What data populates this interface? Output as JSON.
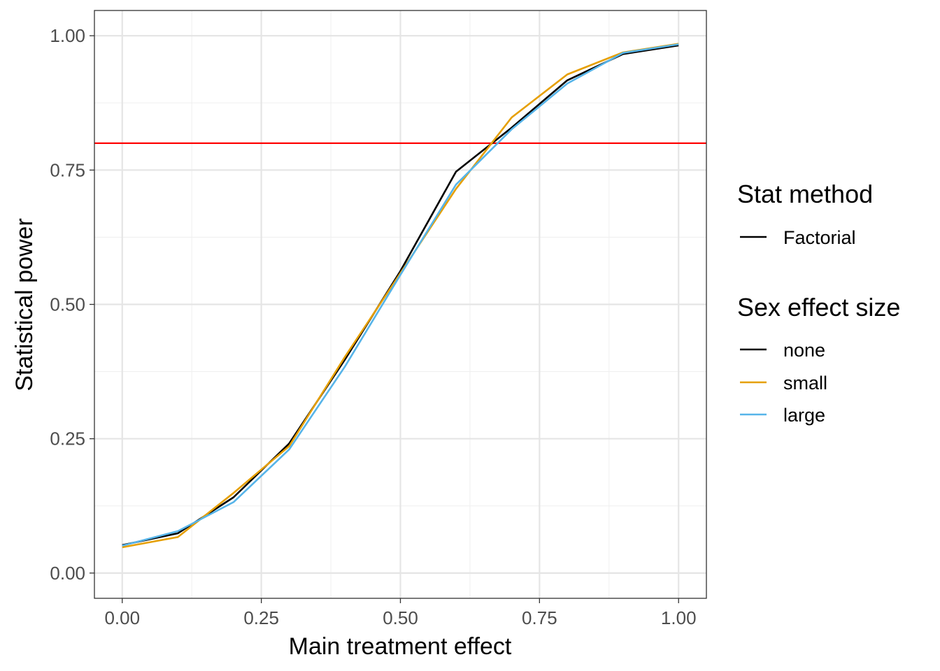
{
  "chart_data": {
    "type": "line",
    "title": "",
    "xlabel": "Main treatment effect",
    "ylabel": "Statistical power",
    "xlim": [
      -0.05,
      1.05
    ],
    "ylim": [
      -0.047,
      1.047
    ],
    "grid": true,
    "x_ticks": [
      0.0,
      0.25,
      0.5,
      0.75,
      1.0
    ],
    "x_tick_labels": [
      "0.00",
      "0.25",
      "0.50",
      "0.75",
      "1.00"
    ],
    "y_ticks": [
      0.0,
      0.25,
      0.5,
      0.75,
      1.0
    ],
    "y_tick_labels": [
      "0.00",
      "0.25",
      "0.50",
      "0.75",
      "1.00"
    ],
    "x": [
      0.0,
      0.1,
      0.2,
      0.3,
      0.4,
      0.5,
      0.6,
      0.7,
      0.8,
      0.9,
      1.0
    ],
    "series": [
      {
        "name": "none",
        "color": "#000000",
        "values": [
          0.052,
          0.074,
          0.141,
          0.241,
          0.397,
          0.562,
          0.747,
          0.829,
          0.917,
          0.966,
          0.982
        ]
      },
      {
        "name": "small",
        "color": "#E69F00",
        "values": [
          0.048,
          0.067,
          0.149,
          0.236,
          0.402,
          0.558,
          0.715,
          0.848,
          0.928,
          0.969,
          0.985
        ]
      },
      {
        "name": "large",
        "color": "#56B4E9",
        "values": [
          0.051,
          0.078,
          0.132,
          0.23,
          0.384,
          0.555,
          0.723,
          0.826,
          0.911,
          0.968,
          0.984
        ]
      }
    ],
    "reference_line": {
      "y": 0.8,
      "color": "#FF0000"
    },
    "legend": {
      "placement": "right",
      "groups": [
        {
          "title": "Stat method",
          "items": [
            {
              "label": "Factorial",
              "color": "#000000"
            }
          ]
        },
        {
          "title": "Sex effect size",
          "items": [
            {
              "label": "none",
              "color": "#000000"
            },
            {
              "label": "small",
              "color": "#E69F00"
            },
            {
              "label": "large",
              "color": "#56B4E9"
            }
          ]
        }
      ]
    }
  }
}
